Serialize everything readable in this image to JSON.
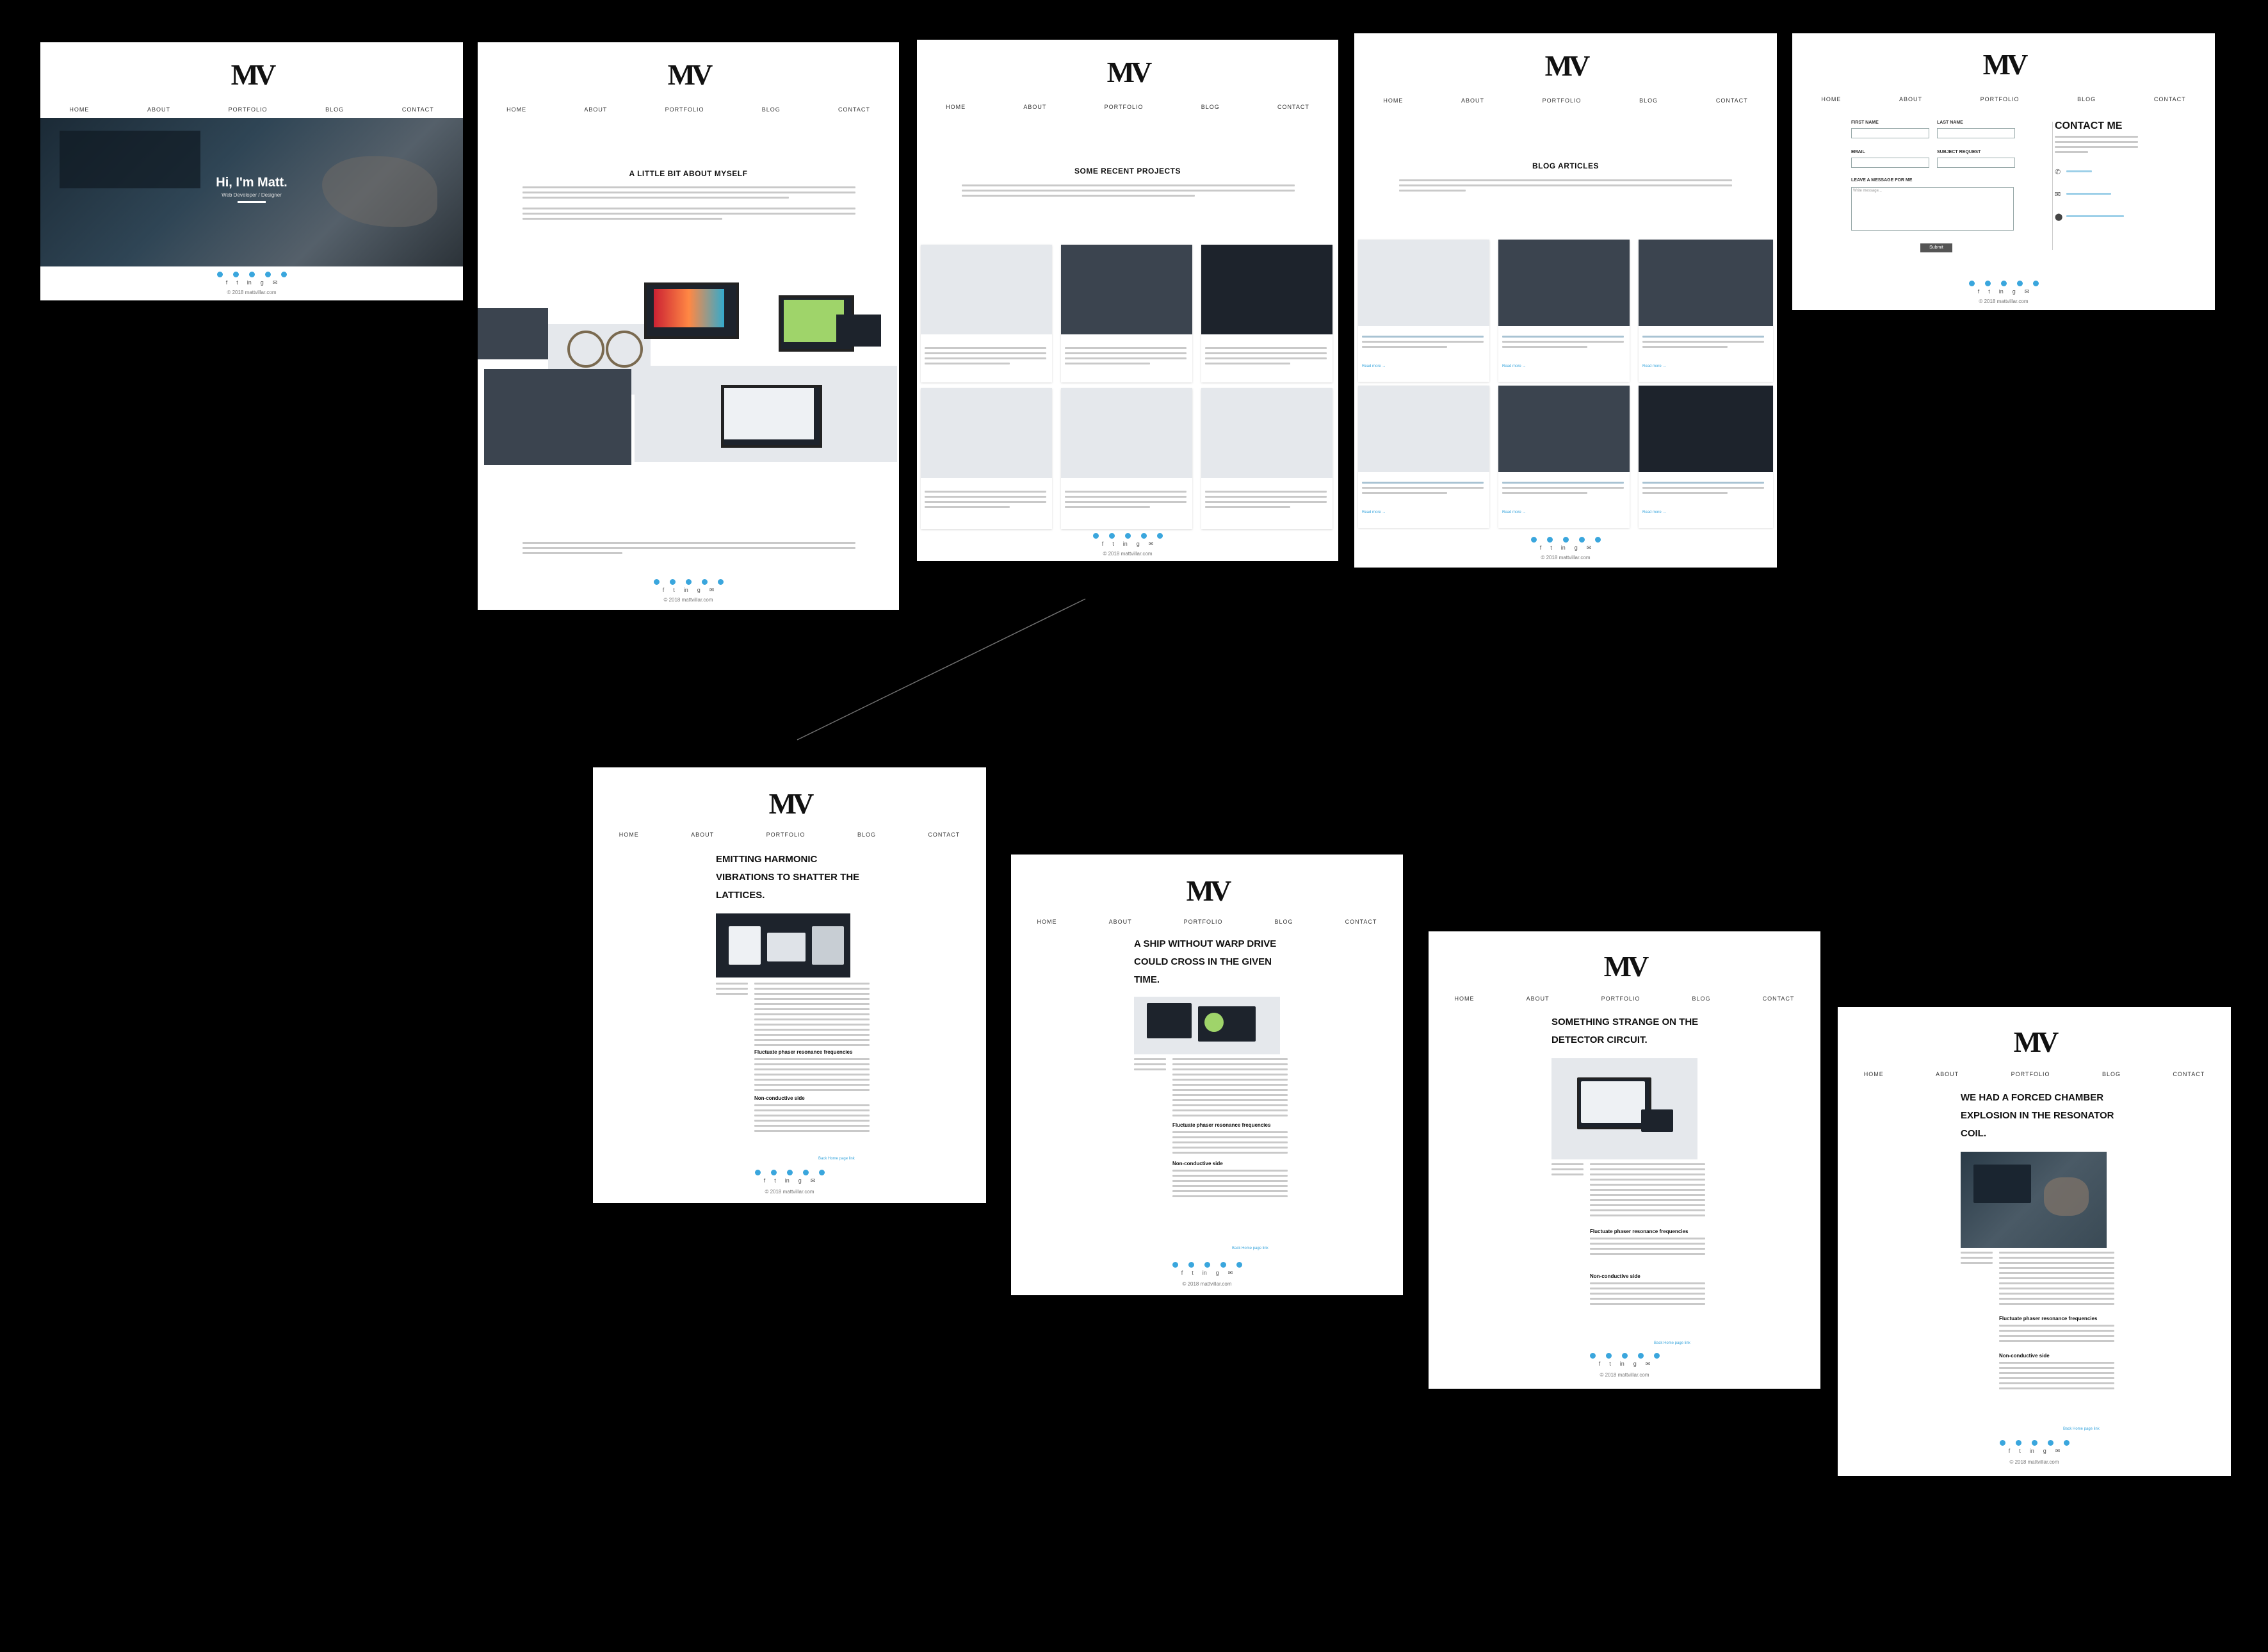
{
  "site": {
    "logo": "MV",
    "nav": [
      "HOME",
      "ABOUT",
      "PORTFOLIO",
      "BLOG",
      "CONTACT"
    ],
    "social_icons": [
      "facebook-icon",
      "twitter-icon",
      "linkedin-icon",
      "github-icon",
      "email-icon"
    ],
    "social_glyphs": [
      "f",
      "t",
      "in",
      "g",
      "✉"
    ],
    "footer": "© 2018 mattvillar.com"
  },
  "colors": {
    "accent": "#3aa6dd",
    "background": "#000000",
    "page": "#ffffff"
  },
  "home": {
    "hero_title": "Hi, I'm Matt.",
    "hero_subtitle": "Web Developer / Designer"
  },
  "about": {
    "title": "A LITTLE BIT ABOUT MYSELF"
  },
  "portfolio": {
    "title": "SOME RECENT PROJECTS"
  },
  "blog": {
    "title": "BLOG ARTICLES",
    "read_more": "Read more →"
  },
  "contact": {
    "title": "CONTACT ME",
    "first_name_label": "FIRST NAME",
    "last_name_label": "LAST NAME",
    "email_label": "EMAIL",
    "subject_label": "SUBJECT REQUEST",
    "message_label": "LEAVE A MESSAGE FOR ME",
    "message_placeholder": "Write message...",
    "submit_label": "Submit"
  },
  "posts": [
    {
      "title": "EMITTING HARMONIC VIBRATIONS TO SHATTER THE LATTICES.",
      "heading1": "Fluctuate phaser resonance frequencies",
      "heading2": "Non-conductive side",
      "back": "Back   Home page link"
    },
    {
      "title": "A SHIP WITHOUT WARP DRIVE COULD CROSS IN THE GIVEN TIME.",
      "heading1": "Fluctuate phaser resonance frequencies",
      "heading2": "Non-conductive side",
      "back": "Back   Home page link"
    },
    {
      "title": "SOMETHING STRANGE ON THE DETECTOR CIRCUIT.",
      "heading1": "Fluctuate phaser resonance frequencies",
      "heading2": "Non-conductive side",
      "back": "Back   Home page link"
    },
    {
      "title": "WE HAD A FORCED CHAMBER EXPLOSION IN THE RESONATOR COIL.",
      "heading1": "Fluctuate phaser resonance frequencies",
      "heading2": "Non-conductive side",
      "back": "Back   Home page link"
    }
  ]
}
